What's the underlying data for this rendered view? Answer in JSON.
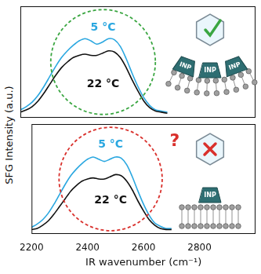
{
  "chart_data": [
    {
      "type": "line",
      "y_label": "SFG Intensity (a.u.)",
      "xlim": [
        2200,
        3000
      ],
      "ylim": [
        0,
        1
      ],
      "tick_labels": false,
      "grid": false,
      "x": [
        2200,
        2220,
        2240,
        2260,
        2280,
        2300,
        2320,
        2340,
        2360,
        2380,
        2400,
        2420,
        2440,
        2460,
        2480,
        2500,
        2520,
        2540,
        2560,
        2580,
        2600,
        2620,
        2640,
        2660,
        2680,
        2700
      ],
      "series": [
        {
          "name": "22 °C",
          "color": "#111111",
          "values": [
            0.05,
            0.07,
            0.1,
            0.15,
            0.22,
            0.3,
            0.38,
            0.45,
            0.5,
            0.54,
            0.56,
            0.57,
            0.56,
            0.56,
            0.58,
            0.6,
            0.59,
            0.54,
            0.45,
            0.34,
            0.24,
            0.15,
            0.09,
            0.06,
            0.05,
            0.04
          ]
        },
        {
          "name": "5 °C",
          "color": "#2aa7e0",
          "values": [
            0.07,
            0.1,
            0.14,
            0.2,
            0.28,
            0.37,
            0.46,
            0.54,
            0.6,
            0.65,
            0.69,
            0.71,
            0.69,
            0.66,
            0.68,
            0.71,
            0.7,
            0.64,
            0.53,
            0.4,
            0.28,
            0.18,
            0.11,
            0.07,
            0.06,
            0.05
          ]
        }
      ],
      "cartoon_labels": [
        "INP",
        "INP",
        "INP"
      ]
    },
    {
      "type": "line",
      "x_label": "IR wavenumber (cm⁻¹)",
      "xlim": [
        2200,
        3000
      ],
      "ylim": [
        0,
        1
      ],
      "xticks": [
        2200,
        2400,
        2600,
        2800
      ],
      "tick_labels": "x",
      "grid": false,
      "x": [
        2200,
        2220,
        2240,
        2260,
        2280,
        2300,
        2320,
        2340,
        2360,
        2380,
        2400,
        2420,
        2440,
        2460,
        2480,
        2500,
        2520,
        2540,
        2560,
        2580,
        2600,
        2620,
        2640,
        2660,
        2680,
        2700
      ],
      "series": [
        {
          "name": "22 °C",
          "color": "#111111",
          "values": [
            0.04,
            0.05,
            0.08,
            0.12,
            0.18,
            0.25,
            0.32,
            0.39,
            0.44,
            0.48,
            0.5,
            0.51,
            0.5,
            0.5,
            0.52,
            0.54,
            0.53,
            0.48,
            0.4,
            0.3,
            0.21,
            0.13,
            0.08,
            0.05,
            0.04,
            0.04
          ]
        },
        {
          "name": "5 °C",
          "color": "#2aa7e0",
          "values": [
            0.06,
            0.09,
            0.13,
            0.19,
            0.27,
            0.36,
            0.45,
            0.53,
            0.59,
            0.64,
            0.68,
            0.7,
            0.68,
            0.66,
            0.68,
            0.7,
            0.69,
            0.63,
            0.52,
            0.39,
            0.27,
            0.17,
            0.1,
            0.07,
            0.05,
            0.05
          ]
        }
      ],
      "annotations": [
        "?"
      ],
      "cartoon_labels": [
        "INP"
      ]
    }
  ]
}
